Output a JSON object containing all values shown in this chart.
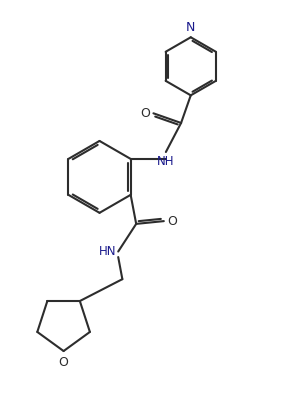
{
  "bg_color": "#ffffff",
  "line_color": "#2d2d2d",
  "line_width": 1.5,
  "text_color": "#1a1a8c",
  "atom_color": "#2d2d2d",
  "font_size": 8.5,
  "figsize": [
    2.82,
    3.98
  ],
  "dpi": 100,
  "xlim": [
    0,
    10
  ],
  "ylim": [
    0,
    14
  ]
}
